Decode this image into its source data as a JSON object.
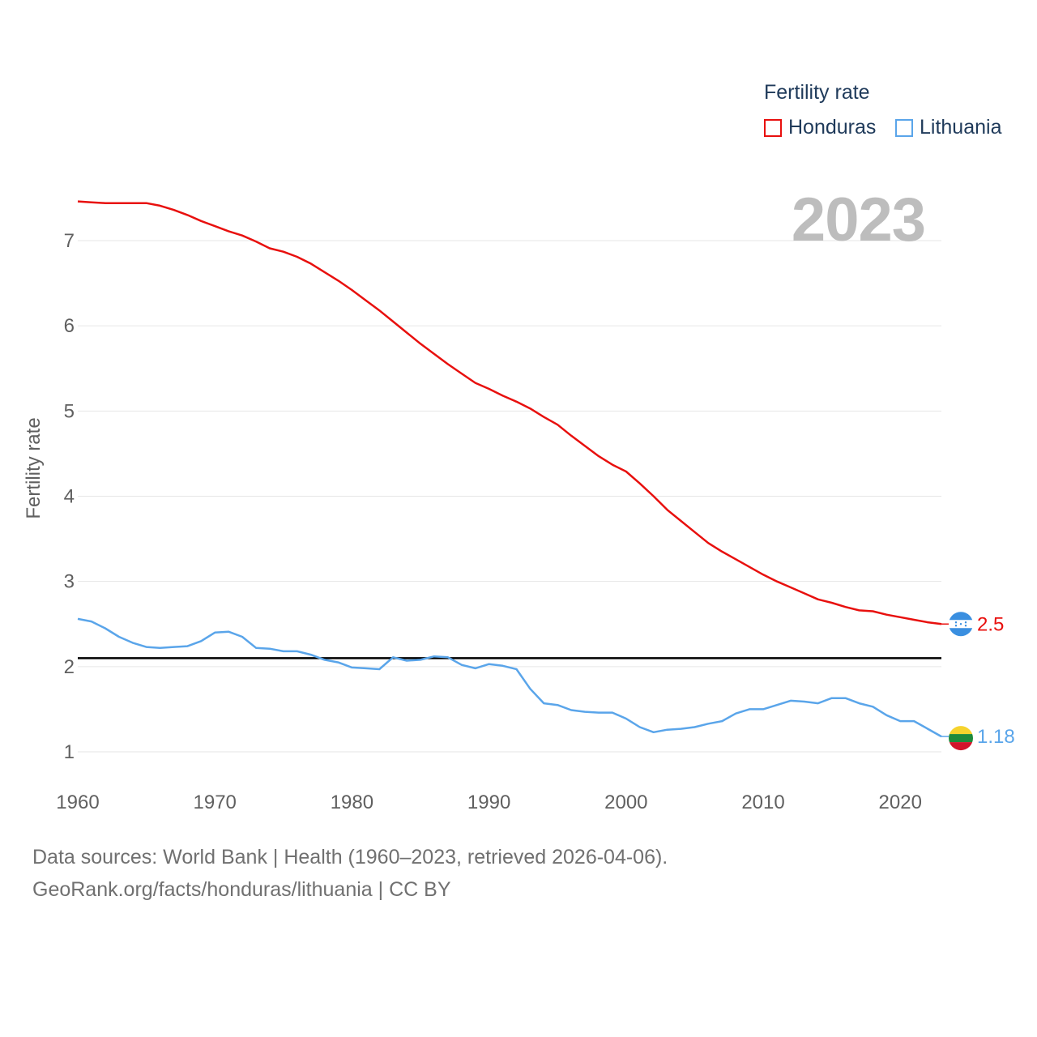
{
  "legend": {
    "title": "Fertility rate",
    "items": [
      {
        "label": "Honduras",
        "color": "#e8100e"
      },
      {
        "label": "Lithuania",
        "color": "#5aa5ea"
      }
    ]
  },
  "year_label": "2023",
  "end_labels": {
    "honduras": "2.5",
    "lithuania": "1.18"
  },
  "footer": {
    "source": "Data sources: World Bank | Health (1960–2023, retrieved 2026-04-06).",
    "credit": "GeoRank.org/facts/honduras/lithuania | CC BY"
  },
  "chart_data": {
    "type": "line",
    "title": "Fertility rate",
    "xlabel": "",
    "ylabel": "Fertility rate",
    "xlim": [
      1960,
      2023
    ],
    "ylim": [
      1,
      7.5
    ],
    "xticks": [
      1960,
      1970,
      1980,
      1990,
      2000,
      2010,
      2020
    ],
    "yticks": [
      1,
      2,
      3,
      4,
      5,
      6,
      7
    ],
    "grid": true,
    "legend_position": "top-right",
    "reference_line": {
      "y": 2.1,
      "color": "#000000"
    },
    "x": [
      1960,
      1961,
      1962,
      1963,
      1964,
      1965,
      1966,
      1967,
      1968,
      1969,
      1970,
      1971,
      1972,
      1973,
      1974,
      1975,
      1976,
      1977,
      1978,
      1979,
      1980,
      1981,
      1982,
      1983,
      1984,
      1985,
      1986,
      1987,
      1988,
      1989,
      1990,
      1991,
      1992,
      1993,
      1994,
      1995,
      1996,
      1997,
      1998,
      1999,
      2000,
      2001,
      2002,
      2003,
      2004,
      2005,
      2006,
      2007,
      2008,
      2009,
      2010,
      2011,
      2012,
      2013,
      2014,
      2015,
      2016,
      2017,
      2018,
      2019,
      2020,
      2021,
      2022,
      2023
    ],
    "series": [
      {
        "name": "Honduras",
        "color": "#e8100e",
        "values": [
          7.46,
          7.45,
          7.44,
          7.44,
          7.44,
          7.44,
          7.41,
          7.36,
          7.3,
          7.23,
          7.17,
          7.11,
          7.06,
          6.99,
          6.91,
          6.87,
          6.81,
          6.73,
          6.63,
          6.53,
          6.42,
          6.3,
          6.18,
          6.05,
          5.92,
          5.79,
          5.67,
          5.55,
          5.44,
          5.33,
          5.26,
          5.18,
          5.11,
          5.03,
          4.93,
          4.84,
          4.71,
          4.59,
          4.47,
          4.37,
          4.29,
          4.15,
          4.0,
          3.84,
          3.71,
          3.58,
          3.45,
          3.35,
          3.26,
          3.17,
          3.08,
          3.0,
          2.93,
          2.86,
          2.79,
          2.75,
          2.7,
          2.66,
          2.65,
          2.61,
          2.58,
          2.55,
          2.52,
          2.5
        ]
      },
      {
        "name": "Lithuania",
        "color": "#5aa5ea",
        "values": [
          2.56,
          2.53,
          2.45,
          2.35,
          2.28,
          2.23,
          2.22,
          2.23,
          2.24,
          2.3,
          2.4,
          2.41,
          2.35,
          2.22,
          2.21,
          2.18,
          2.18,
          2.14,
          2.08,
          2.05,
          1.99,
          1.98,
          1.97,
          2.11,
          2.07,
          2.08,
          2.12,
          2.11,
          2.02,
          1.98,
          2.03,
          2.01,
          1.97,
          1.74,
          1.57,
          1.55,
          1.49,
          1.47,
          1.46,
          1.46,
          1.39,
          1.29,
          1.23,
          1.26,
          1.27,
          1.29,
          1.33,
          1.36,
          1.45,
          1.5,
          1.5,
          1.55,
          1.6,
          1.59,
          1.57,
          1.63,
          1.63,
          1.57,
          1.53,
          1.43,
          1.36,
          1.36,
          1.27,
          1.18
        ]
      }
    ]
  }
}
